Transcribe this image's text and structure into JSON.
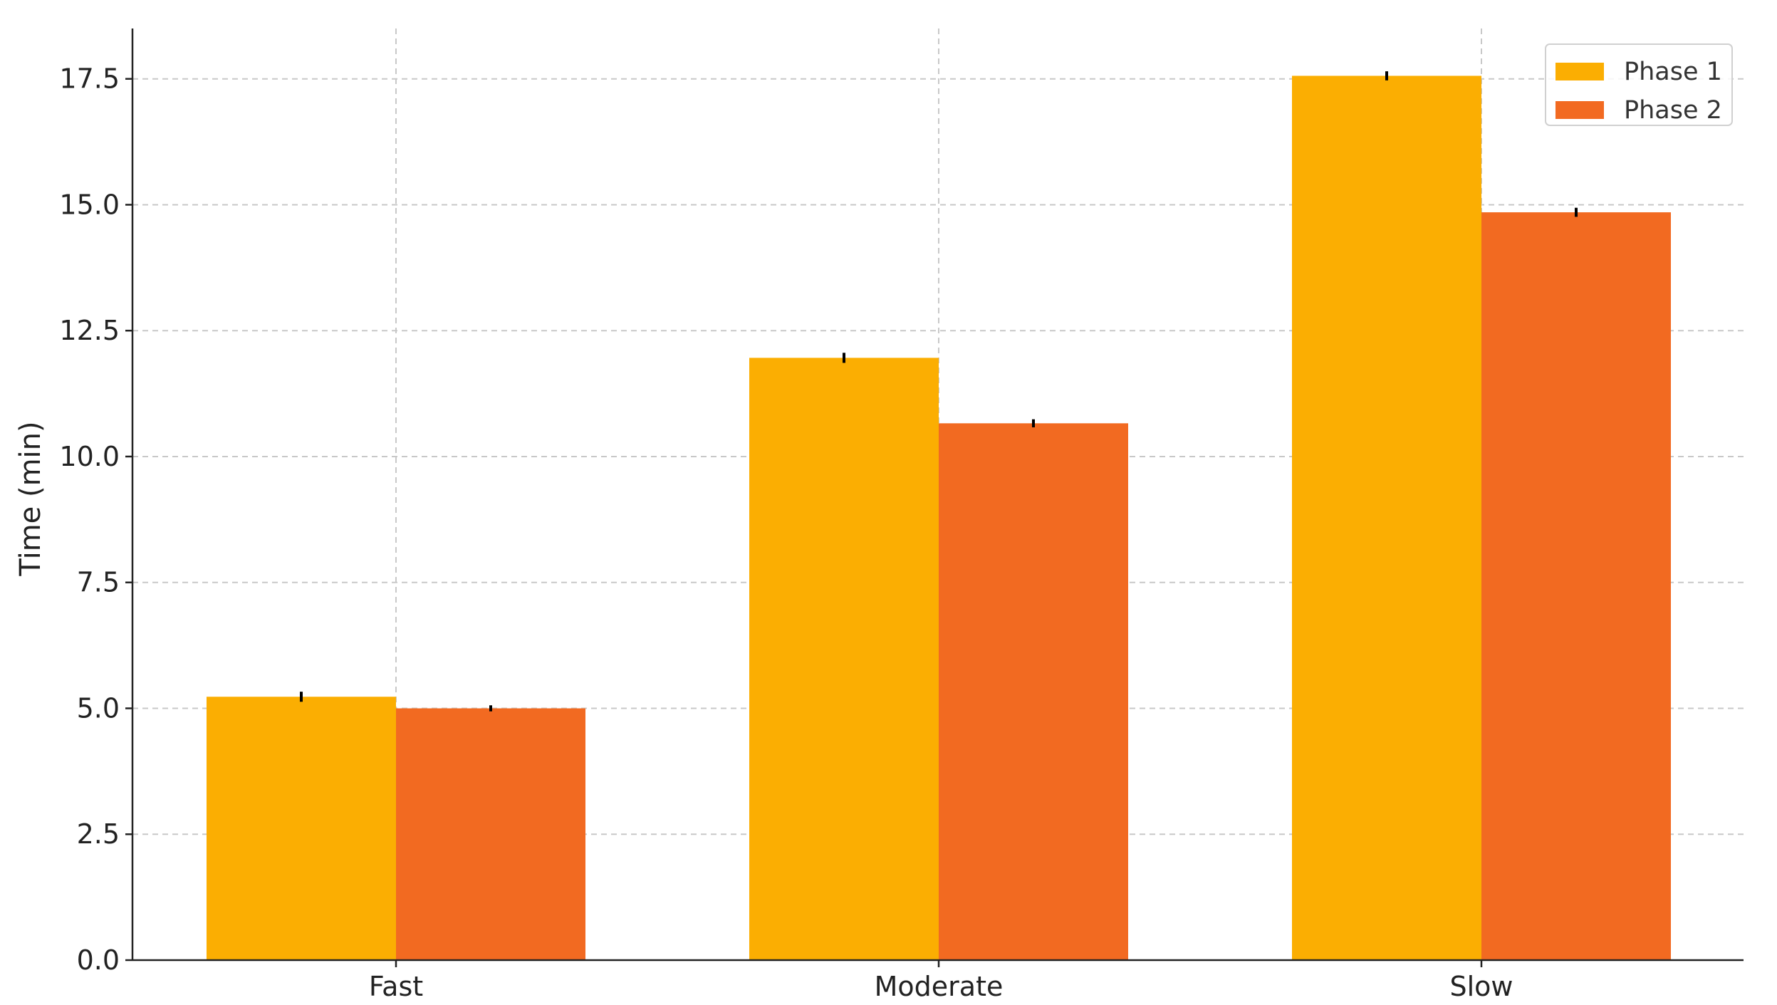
{
  "chart_data": {
    "type": "bar",
    "categories": [
      "Fast",
      "Moderate",
      "Slow"
    ],
    "series": [
      {
        "name": "Phase 1",
        "values": [
          5.23,
          11.96,
          17.56
        ],
        "errors": [
          0.1,
          0.1,
          0.09
        ],
        "color": "#FBAE02"
      },
      {
        "name": "Phase 2",
        "values": [
          5.0,
          10.66,
          14.85
        ],
        "errors": [
          0.06,
          0.08,
          0.09
        ],
        "color": "#F26A21"
      }
    ],
    "title": "",
    "xlabel": "",
    "ylabel": "Time (min)",
    "ylim": [
      0,
      18.5
    ],
    "yticks": [
      0.0,
      2.5,
      5.0,
      7.5,
      10.0,
      12.5,
      15.0,
      17.5
    ],
    "ytick_labels": [
      "0.0",
      "2.5",
      "5.0",
      "7.5",
      "10.0",
      "12.5",
      "15.0",
      "17.5"
    ],
    "grid": true,
    "legend": "top-right"
  }
}
